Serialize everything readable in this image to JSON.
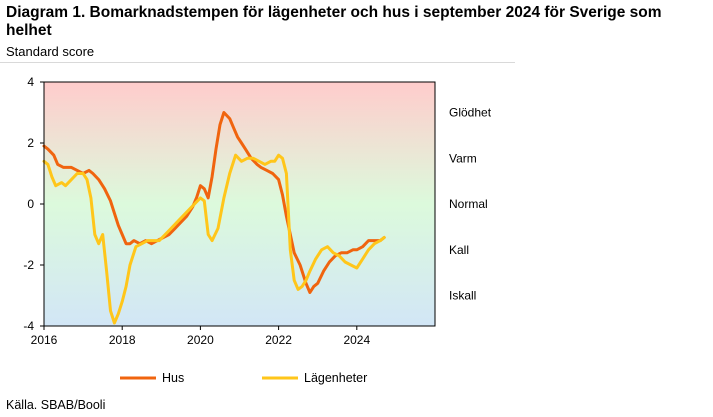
{
  "header": {
    "title": "Diagram 1. Bomarknadstempen för lägenheter och hus i september 2024 för Sverige som helhet",
    "subtitle": "Standard score"
  },
  "footer": {
    "source": "Källa. SBAB/Booli"
  },
  "colors": {
    "hus": "#f0640f",
    "lagenheter": "#ffc61a",
    "band_hot": "#ffcccc",
    "band_normal": "#dcfadc",
    "band_cold": "#d2e6f6"
  },
  "chart_data": {
    "type": "line",
    "title": "Diagram 1. Bomarknadstempen för lägenheter och hus i september 2024 för Sverige som helhet",
    "ylabel": "Standard score",
    "xlabel": "",
    "xlim": [
      2016,
      2026
    ],
    "ylim": [
      -4,
      4
    ],
    "x_ticks": [
      2016,
      2018,
      2020,
      2022,
      2024
    ],
    "y_ticks": [
      4,
      2,
      0,
      -2,
      -4
    ],
    "grid": false,
    "legend": "bottom",
    "background_bands": [
      {
        "label": "Glödhet",
        "y": 3
      },
      {
        "label": "Varm",
        "y": 1.5
      },
      {
        "label": "Normal",
        "y": 0
      },
      {
        "label": "Kall",
        "y": -1.5
      },
      {
        "label": "Iskall",
        "y": -3
      }
    ],
    "series": [
      {
        "name": "Hus",
        "x": [
          2016.0,
          2016.1,
          2016.25,
          2016.35,
          2016.5,
          2016.7,
          2016.85,
          2017.0,
          2017.15,
          2017.25,
          2017.4,
          2017.55,
          2017.7,
          2017.8,
          2017.9,
          2018.0,
          2018.1,
          2018.2,
          2018.3,
          2018.45,
          2018.6,
          2018.75,
          2018.9,
          2019.05,
          2019.2,
          2019.35,
          2019.5,
          2019.65,
          2019.8,
          2019.9,
          2020.0,
          2020.1,
          2020.2,
          2020.3,
          2020.4,
          2020.5,
          2020.6,
          2020.75,
          2020.85,
          2020.95,
          2021.05,
          2021.15,
          2021.3,
          2021.45,
          2021.55,
          2021.7,
          2021.85,
          2022.0,
          2022.1,
          2022.2,
          2022.3,
          2022.4,
          2022.55,
          2022.7,
          2022.8,
          2022.9,
          2023.0,
          2023.15,
          2023.3,
          2023.45,
          2023.6,
          2023.75,
          2023.9,
          2024.0,
          2024.15,
          2024.3,
          2024.45,
          2024.6,
          2024.7
        ],
        "values": [
          1.9,
          1.8,
          1.6,
          1.3,
          1.2,
          1.2,
          1.1,
          1.0,
          1.1,
          1.0,
          0.8,
          0.5,
          0.1,
          -0.3,
          -0.7,
          -1.0,
          -1.3,
          -1.3,
          -1.2,
          -1.3,
          -1.2,
          -1.3,
          -1.2,
          -1.1,
          -1.0,
          -0.8,
          -0.6,
          -0.4,
          -0.1,
          0.2,
          0.6,
          0.5,
          0.2,
          0.9,
          1.8,
          2.6,
          3.0,
          2.8,
          2.5,
          2.2,
          2.0,
          1.8,
          1.5,
          1.3,
          1.2,
          1.1,
          1.0,
          0.8,
          0.3,
          -0.4,
          -1.0,
          -1.6,
          -2.0,
          -2.6,
          -2.9,
          -2.7,
          -2.6,
          -2.2,
          -1.9,
          -1.7,
          -1.6,
          -1.6,
          -1.5,
          -1.5,
          -1.4,
          -1.2,
          -1.2,
          -1.2,
          -1.1
        ]
      },
      {
        "name": "Lägenheter",
        "x": [
          2016.0,
          2016.1,
          2016.2,
          2016.3,
          2016.45,
          2016.55,
          2016.7,
          2016.85,
          2017.0,
          2017.1,
          2017.2,
          2017.3,
          2017.4,
          2017.5,
          2017.6,
          2017.7,
          2017.8,
          2017.9,
          2018.0,
          2018.1,
          2018.2,
          2018.35,
          2018.5,
          2018.65,
          2018.8,
          2018.95,
          2019.1,
          2019.25,
          2019.4,
          2019.55,
          2019.7,
          2019.85,
          2020.0,
          2020.1,
          2020.2,
          2020.3,
          2020.45,
          2020.6,
          2020.75,
          2020.9,
          2021.05,
          2021.2,
          2021.35,
          2021.5,
          2021.65,
          2021.8,
          2021.9,
          2022.0,
          2022.1,
          2022.2,
          2022.3,
          2022.4,
          2022.5,
          2022.6,
          2022.7,
          2022.8,
          2022.95,
          2023.1,
          2023.25,
          2023.4,
          2023.55,
          2023.7,
          2023.85,
          2024.0,
          2024.15,
          2024.3,
          2024.45,
          2024.6,
          2024.7
        ],
        "values": [
          1.4,
          1.3,
          0.9,
          0.6,
          0.7,
          0.6,
          0.8,
          1.0,
          1.0,
          0.8,
          0.2,
          -1.0,
          -1.3,
          -1.0,
          -2.2,
          -3.5,
          -3.9,
          -3.6,
          -3.2,
          -2.7,
          -2.0,
          -1.4,
          -1.3,
          -1.2,
          -1.2,
          -1.2,
          -1.0,
          -0.8,
          -0.6,
          -0.4,
          -0.2,
          0.0,
          0.2,
          0.1,
          -1.0,
          -1.2,
          -0.8,
          0.2,
          1.0,
          1.6,
          1.4,
          1.5,
          1.5,
          1.4,
          1.3,
          1.4,
          1.4,
          1.6,
          1.5,
          1.0,
          -1.5,
          -2.5,
          -2.8,
          -2.7,
          -2.5,
          -2.2,
          -1.8,
          -1.5,
          -1.4,
          -1.6,
          -1.7,
          -1.9,
          -2.0,
          -2.1,
          -1.8,
          -1.5,
          -1.3,
          -1.2,
          -1.1
        ]
      }
    ]
  }
}
